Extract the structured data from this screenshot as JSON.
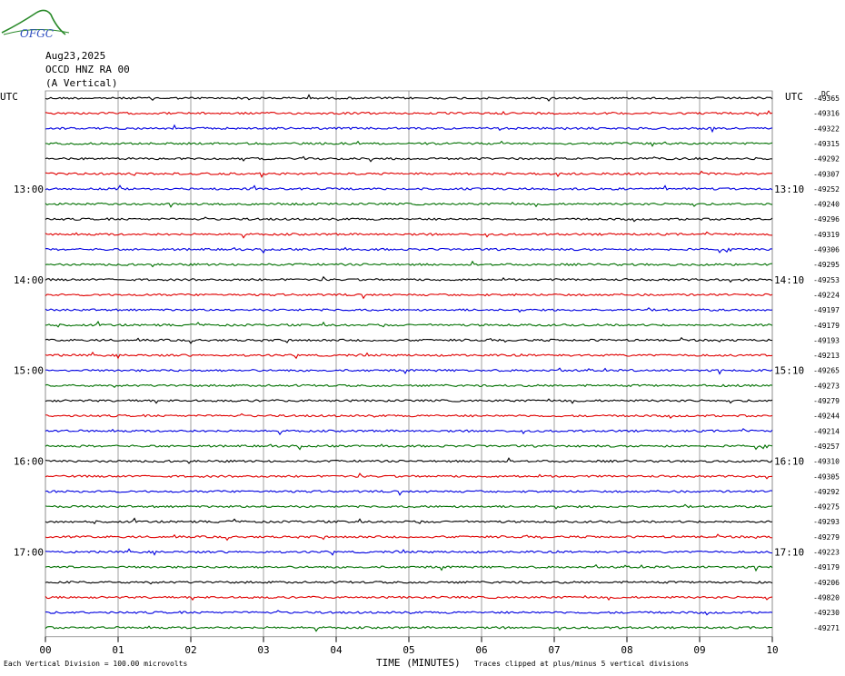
{
  "logo": {
    "text": "OFGC"
  },
  "header": {
    "date": "Aug23,2025",
    "station": "OCCD HNZ RA 00",
    "component": "(A Vertical)"
  },
  "utc_left": "UTC",
  "utc_right": "UTC",
  "dc_label": "DC",
  "colors": {
    "trace": [
      "#000000",
      "#e00000",
      "#0000e0",
      "#007000"
    ],
    "grid": "#888888"
  },
  "chart_data": {
    "type": "line",
    "title": "",
    "xlabel": "TIME (MINUTES)",
    "x_ticks": [
      "00",
      "01",
      "02",
      "03",
      "04",
      "05",
      "06",
      "07",
      "08",
      "09",
      "10"
    ],
    "xlim": [
      0,
      10
    ],
    "left_time_labels": [
      {
        "row": 6,
        "label": "13:00"
      },
      {
        "row": 12,
        "label": "14:00"
      },
      {
        "row": 18,
        "label": "15:00"
      },
      {
        "row": 24,
        "label": "16:00"
      },
      {
        "row": 30,
        "label": "17:00"
      }
    ],
    "right_time_labels": [
      {
        "row": 6,
        "label": "13:10"
      },
      {
        "row": 12,
        "label": "14:10"
      },
      {
        "row": 18,
        "label": "15:10"
      },
      {
        "row": 24,
        "label": "16:10"
      },
      {
        "row": 30,
        "label": "17:10"
      }
    ],
    "dc_offsets": [
      "-49365",
      "-49316",
      "-49322",
      "-49315",
      "-49292",
      "-49307",
      "-49252",
      "-49240",
      "-49296",
      "-49319",
      "-49306",
      "-49295",
      "-49253",
      "-49224",
      "-49197",
      "-49179",
      "-49193",
      "-49213",
      "-49265",
      "-49273",
      "-49279",
      "-49244",
      "-49214",
      "-49257",
      "-49310",
      "-49305",
      "-49292",
      "-49275",
      "-49293",
      "-49279",
      "-49223",
      "-49179",
      "-49206",
      "-49820",
      "-49230",
      "-49271"
    ],
    "footer_left": "Each Vertical Division =  100.00 microvolts",
    "footer_right": "Traces clipped at plus/minus 5 vertical divisions"
  }
}
